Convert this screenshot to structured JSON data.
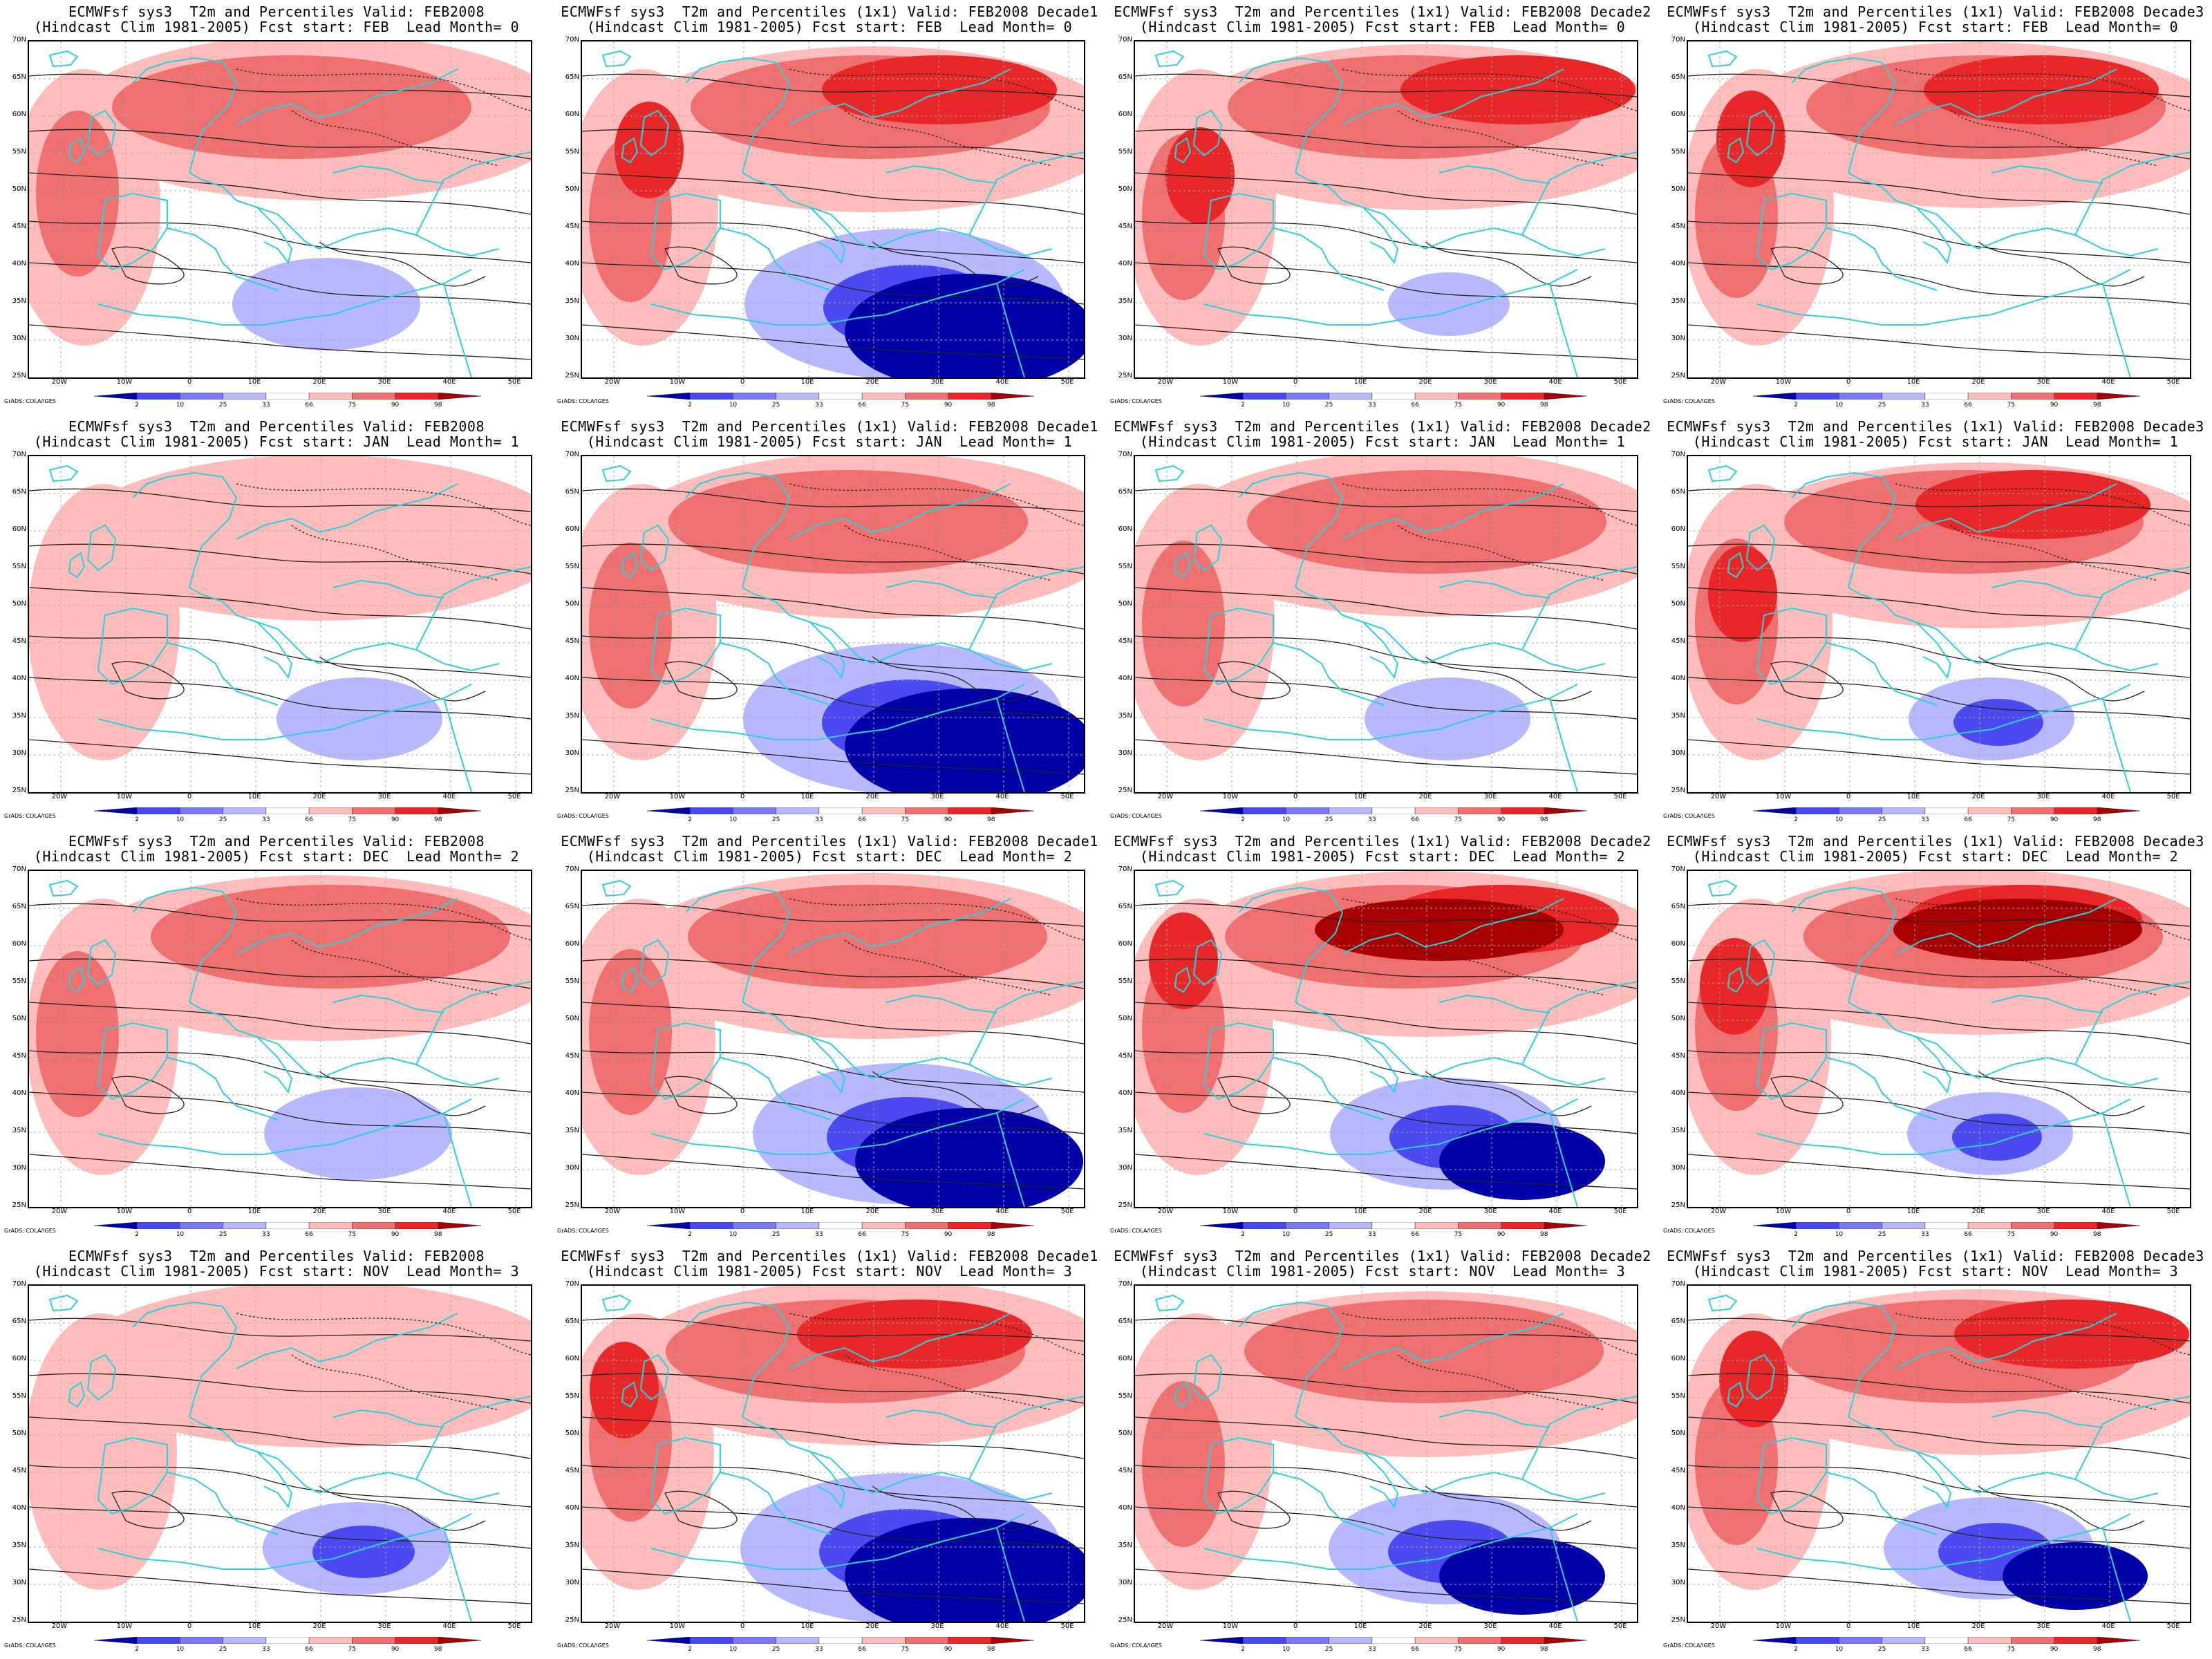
{
  "colorbar": {
    "labels": [
      "2",
      "10",
      "25",
      "33",
      "66",
      "75",
      "90",
      "98"
    ]
  },
  "credit": "GrADS: COLA/IGES",
  "lat_labels": [
    "70N",
    "65N",
    "60N",
    "55N",
    "50N",
    "45N",
    "40N",
    "35N",
    "30N",
    "25N"
  ],
  "lon_labels": [
    "20W",
    "10W",
    "0",
    "10E",
    "20E",
    "30E",
    "40E",
    "50E"
  ],
  "colors": {
    "coast": "#2ecfd6",
    "contour": "#222222",
    "cold3": "#0000a8",
    "cold2": "#4a4af0",
    "cold1": "#b8b8ff",
    "warm1": "#ffbcbc",
    "warm2": "#f07070",
    "warm3": "#e82828",
    "warm4": "#a80000"
  },
  "panels": [
    {
      "line1": "ECMWFsf sys3  T2m and Percentiles Valid: FEB2008",
      "line2": "(Hindcast Clim 1981-2005) Fcst start: FEB  Lead Month= 0",
      "warmth": 2,
      "cold": 1,
      "colds": 0.6
    },
    {
      "line1": "ECMWFsf sys3  T2m and Percentiles (1x1) Valid: FEB2008 Decade1",
      "line2": "(Hindcast Clim 1981-2005) Fcst start: FEB  Lead Month= 0",
      "warmth": 3,
      "cold": 3,
      "colds": 1.2
    },
    {
      "line1": "ECMWFsf sys3  T2m and Percentiles (1x1) Valid: FEB2008 Decade2",
      "line2": "(Hindcast Clim 1981-2005) Fcst start: FEB  Lead Month= 0",
      "warmth": 3,
      "cold": 1,
      "colds": 0.3
    },
    {
      "line1": "ECMWFsf sys3  T2m and Percentiles (1x1) Valid: FEB2008 Decade3",
      "line2": "(Hindcast Clim 1981-2005) Fcst start: FEB  Lead Month= 0",
      "warmth": 3,
      "cold": 0,
      "colds": 0.2
    },
    {
      "line1": "ECMWFsf sys3  T2m and Percentiles Valid: FEB2008",
      "line2": "(Hindcast Clim 1981-2005) Fcst start: JAN  Lead Month= 1",
      "warmth": 1,
      "cold": 1,
      "colds": 0.5
    },
    {
      "line1": "ECMWFsf sys3  T2m and Percentiles (1x1) Valid: FEB2008 Decade1",
      "line2": "(Hindcast Clim 1981-2005) Fcst start: JAN  Lead Month= 1",
      "warmth": 2,
      "cold": 3,
      "colds": 1.2
    },
    {
      "line1": "ECMWFsf sys3  T2m and Percentiles (1x1) Valid: FEB2008 Decade2",
      "line2": "(Hindcast Clim 1981-2005) Fcst start: JAN  Lead Month= 1",
      "warmth": 2,
      "cold": 1,
      "colds": 0.5
    },
    {
      "line1": "ECMWFsf sys3  T2m and Percentiles (1x1) Valid: FEB2008 Decade3",
      "line2": "(Hindcast Clim 1981-2005) Fcst start: JAN  Lead Month= 1",
      "warmth": 3,
      "cold": 2,
      "colds": 0.5
    },
    {
      "line1": "ECMWFsf sys3  T2m and Percentiles Valid: FEB2008",
      "line2": "(Hindcast Clim 1981-2005) Fcst start: DEC  Lead Month= 2",
      "warmth": 2,
      "cold": 1,
      "colds": 0.6
    },
    {
      "line1": "ECMWFsf sys3  T2m and Percentiles (1x1) Valid: FEB2008 Decade1",
      "line2": "(Hindcast Clim 1981-2005) Fcst start: DEC  Lead Month= 2",
      "warmth": 2,
      "cold": 3,
      "colds": 1.1
    },
    {
      "line1": "ECMWFsf sys3  T2m and Percentiles (1x1) Valid: FEB2008 Decade2",
      "line2": "(Hindcast Clim 1981-2005) Fcst start: DEC  Lead Month= 2",
      "warmth": 4,
      "cold": 3,
      "colds": 0.8
    },
    {
      "line1": "ECMWFsf sys3  T2m and Percentiles (1x1) Valid: FEB2008 Decade3",
      "line2": "(Hindcast Clim 1981-2005) Fcst start: DEC  Lead Month= 2",
      "warmth": 4,
      "cold": 2,
      "colds": 0.5
    },
    {
      "line1": "ECMWFsf sys3  T2m and Percentiles Valid: FEB2008",
      "line2": "(Hindcast Clim 1981-2005) Fcst start: NOV  Lead Month= 3",
      "warmth": 1,
      "cold": 2,
      "colds": 0.6
    },
    {
      "line1": "ECMWFsf sys3  T2m and Percentiles (1x1) Valid: FEB2008 Decade1",
      "line2": "(Hindcast Clim 1981-2005) Fcst start: NOV  Lead Month= 3",
      "warmth": 3,
      "cold": 3,
      "colds": 1.2
    },
    {
      "line1": "ECMWFsf sys3  T2m and Percentiles (1x1) Valid: FEB2008 Decade2",
      "line2": "(Hindcast Clim 1981-2005) Fcst start: NOV  Lead Month= 3",
      "warmth": 2,
      "cold": 3,
      "colds": 0.8
    },
    {
      "line1": "ECMWFsf sys3  T2m and Percentiles (1x1) Valid: FEB2008 Decade3",
      "line2": "(Hindcast Clim 1981-2005) Fcst start: NOV  Lead Month= 3",
      "warmth": 3,
      "cold": 3,
      "colds": 0.7
    }
  ]
}
